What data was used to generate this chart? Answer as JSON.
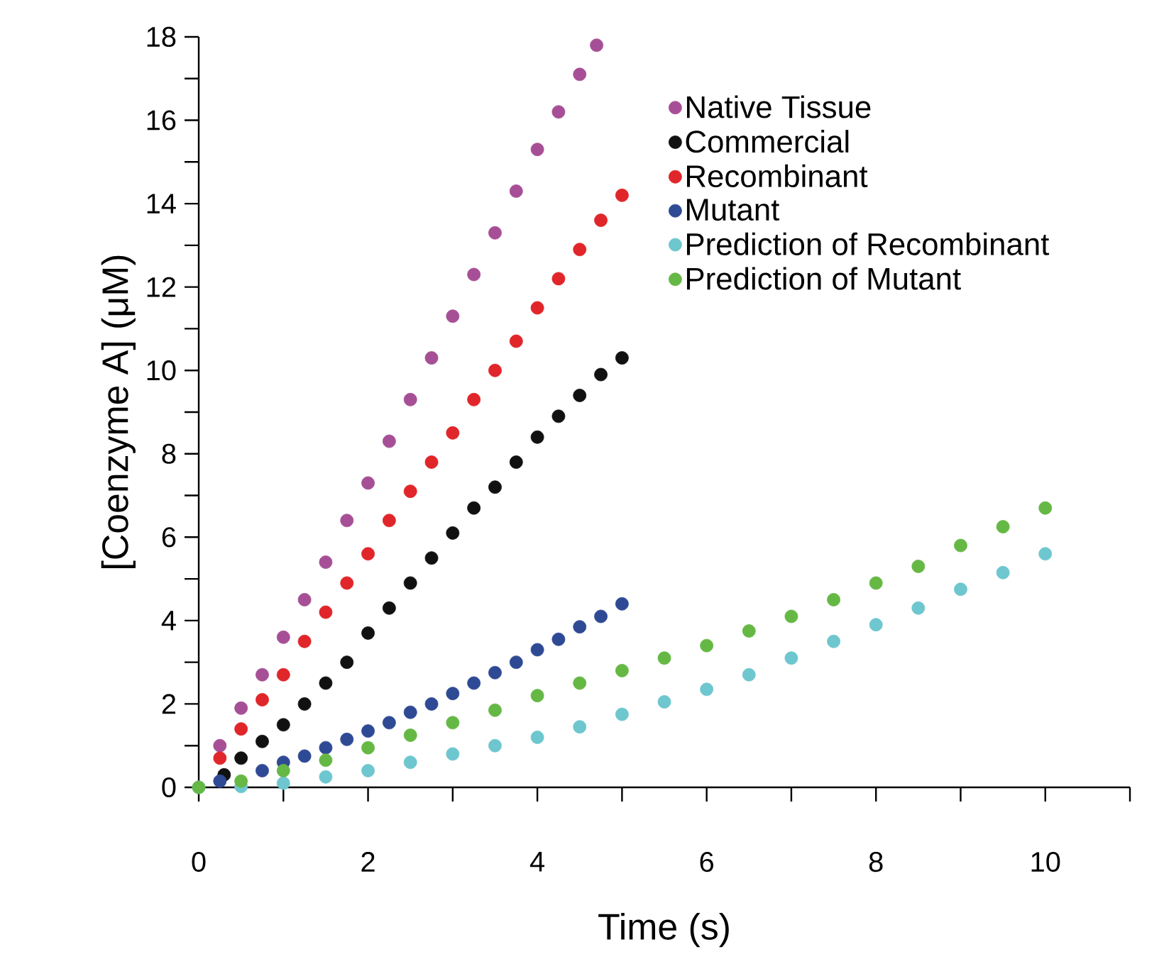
{
  "chart_data": {
    "type": "scatter",
    "xlabel": "Time (s)",
    "ylabel": "[Coenzyme A] (μM)",
    "xlim": [
      0,
      11
    ],
    "ylim": [
      0,
      18
    ],
    "xticks": [
      0,
      {
        "value": 1,
        "label": null
      },
      2,
      {
        "value": 3,
        "label": null
      },
      4,
      {
        "value": 5,
        "label": null
      },
      6,
      {
        "value": 7,
        "label": null
      },
      8,
      {
        "value": 9,
        "label": null
      },
      10,
      {
        "value": 11,
        "label": null
      }
    ],
    "yticks": [
      0,
      {
        "value": 1,
        "label": null
      },
      2,
      {
        "value": 3,
        "label": null
      },
      4,
      {
        "value": 5,
        "label": null
      },
      6,
      {
        "value": 7,
        "label": null
      },
      8,
      {
        "value": 9,
        "label": null
      },
      10,
      {
        "value": 11,
        "label": null
      },
      12,
      {
        "value": 13,
        "label": null
      },
      14,
      {
        "value": 15,
        "label": null
      },
      16,
      {
        "value": 17,
        "label": null
      },
      18
    ],
    "grid": false,
    "legend": "top right",
    "marker": "circle",
    "series": [
      {
        "name": "Native Tissue",
        "color": "#a64f96",
        "x": [
          0.25,
          0.5,
          0.75,
          1,
          1.25,
          1.5,
          1.75,
          2,
          2.25,
          2.5,
          2.75,
          3,
          3.25,
          3.5,
          3.75,
          4,
          4.25,
          4.5,
          4.7
        ],
        "values": [
          1.0,
          1.9,
          2.7,
          3.6,
          4.5,
          5.4,
          6.4,
          7.3,
          8.3,
          9.3,
          10.3,
          11.3,
          12.3,
          13.3,
          14.3,
          15.3,
          16.2,
          17.1,
          17.8
        ]
      },
      {
        "name": "Commercial",
        "color": "#111111",
        "x": [
          0.3,
          0.5,
          0.75,
          1,
          1.25,
          1.5,
          1.75,
          2,
          2.25,
          2.5,
          2.75,
          3,
          3.25,
          3.5,
          3.75,
          4,
          4.25,
          4.5,
          4.75,
          5
        ],
        "values": [
          0.3,
          0.7,
          1.1,
          1.5,
          2.0,
          2.5,
          3.0,
          3.7,
          4.3,
          4.9,
          5.5,
          6.1,
          6.7,
          7.2,
          7.8,
          8.4,
          8.9,
          9.4,
          9.9,
          10.3
        ]
      },
      {
        "name": "Recombinant",
        "color": "#e0262a",
        "x": [
          0.25,
          0.5,
          0.75,
          1,
          1.25,
          1.5,
          1.75,
          2,
          2.25,
          2.5,
          2.75,
          3,
          3.25,
          3.5,
          3.75,
          4,
          4.25,
          4.5,
          4.75,
          5
        ],
        "values": [
          0.7,
          1.4,
          2.1,
          2.7,
          3.5,
          4.2,
          4.9,
          5.6,
          6.4,
          7.1,
          7.8,
          8.5,
          9.3,
          10.0,
          10.7,
          11.5,
          12.2,
          12.9,
          13.6,
          14.2
        ]
      },
      {
        "name": "Mutant",
        "color": "#2f4a94",
        "x": [
          0.25,
          0.75,
          1,
          1.25,
          1.5,
          1.75,
          2,
          2.25,
          2.5,
          2.75,
          3,
          3.25,
          3.5,
          3.75,
          4,
          4.25,
          4.5,
          4.75,
          5
        ],
        "values": [
          0.15,
          0.4,
          0.6,
          0.75,
          0.95,
          1.15,
          1.35,
          1.55,
          1.8,
          2.0,
          2.25,
          2.5,
          2.75,
          3.0,
          3.3,
          3.55,
          3.85,
          4.1,
          4.4
        ]
      },
      {
        "name": "Prediction of Recombinant",
        "color": "#6ec6cf",
        "x": [
          0,
          0.5,
          1,
          1.5,
          2,
          2.5,
          3,
          3.5,
          4,
          4.5,
          5,
          5.5,
          6,
          6.5,
          7,
          7.5,
          8,
          8.5,
          9,
          9.5,
          10
        ],
        "values": [
          0,
          0.02,
          0.1,
          0.25,
          0.4,
          0.6,
          0.8,
          1.0,
          1.2,
          1.45,
          1.75,
          2.05,
          2.35,
          2.7,
          3.1,
          3.5,
          3.9,
          4.3,
          4.75,
          5.15,
          5.6
        ]
      },
      {
        "name": "Prediction of Mutant",
        "color": "#66b845",
        "x": [
          0,
          0.5,
          1,
          1.5,
          2,
          2.5,
          3,
          3.5,
          4,
          4.5,
          5,
          5.5,
          6,
          6.5,
          7,
          7.5,
          8,
          8.5,
          9,
          9.5,
          10
        ],
        "values": [
          0,
          0.15,
          0.4,
          0.65,
          0.95,
          1.25,
          1.55,
          1.85,
          2.2,
          2.5,
          2.8,
          3.1,
          3.4,
          3.75,
          4.1,
          4.5,
          4.9,
          5.3,
          5.8,
          6.25,
          6.7
        ]
      }
    ]
  }
}
